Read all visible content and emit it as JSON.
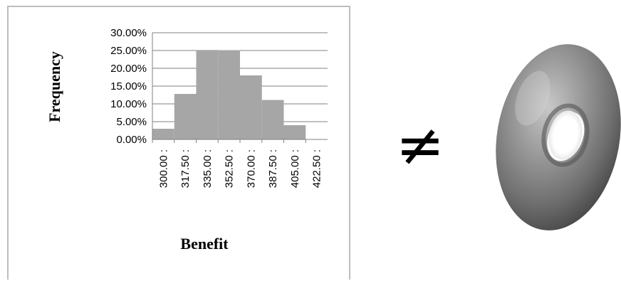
{
  "chart_data": {
    "type": "bar",
    "categories": [
      "300.00 :",
      "317.50 :",
      "335.00 :",
      "352.50 :",
      "370.00 :",
      "387.50 :",
      "405.00 :",
      "422.50 :"
    ],
    "values": [
      3.0,
      12.8,
      25.0,
      25.1,
      18.0,
      11.1,
      4.0,
      0.0
    ],
    "ylim": [
      0,
      30
    ],
    "yticks": [
      "0.00%",
      "5.00%",
      "10.00%",
      "15.00%",
      "20.00%",
      "25.00%",
      "30.00%"
    ],
    "ytick_values": [
      0,
      5,
      10,
      15,
      20,
      25,
      30
    ],
    "xlabel": "Benefit",
    "ylabel": "Frequency",
    "grid": true,
    "bar_color": "#a6a6a6"
  },
  "symbol": "≠",
  "image_icon": "donut-image"
}
